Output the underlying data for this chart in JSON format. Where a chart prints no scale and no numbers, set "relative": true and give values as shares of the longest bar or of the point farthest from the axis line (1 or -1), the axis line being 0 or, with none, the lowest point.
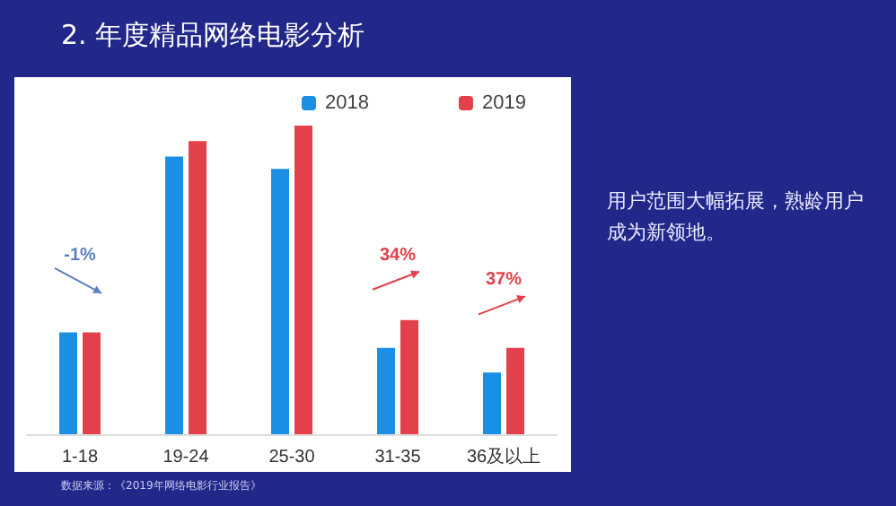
{
  "chart_data": {
    "type": "bar",
    "title": "2. 年度精品网络电影分析",
    "relative": true,
    "categories": [
      "1-18",
      "19-24",
      "25-30",
      "31-35",
      "36及以上"
    ],
    "series": [
      {
        "name": "2018",
        "color": "#1a8fe3",
        "values": [
          0.33,
          0.9,
          0.86,
          0.28,
          0.2
        ]
      },
      {
        "name": "2019",
        "color": "#e2404a",
        "values": [
          0.33,
          0.95,
          1,
          0.37,
          0.28
        ]
      }
    ],
    "legend": "top",
    "annotations": [
      "-1%",
      "34%",
      "37%",
      "用户范围大幅拓展，熟龄用户成为新领地。",
      "数据来源：《2019年网络电影行业报告》"
    ]
  }
}
